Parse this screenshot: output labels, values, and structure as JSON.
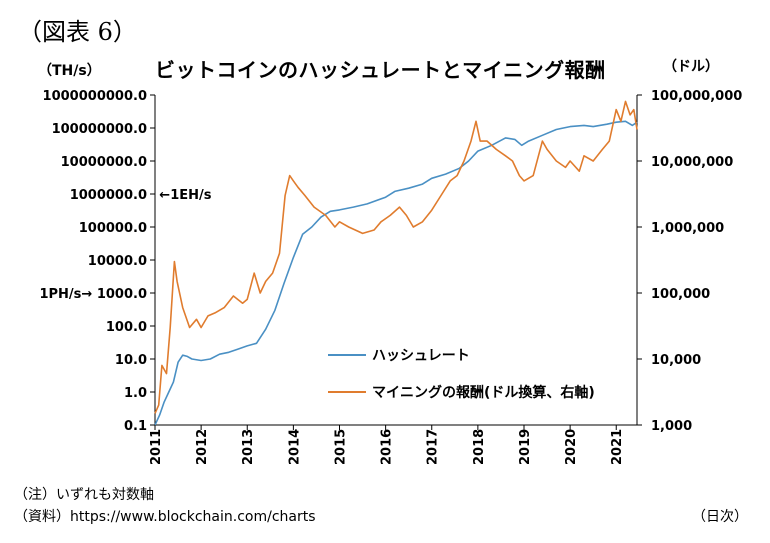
{
  "figure_label": "（図表 6）",
  "note": "（注）いずれも対数軸",
  "source": "（資料）https://www.blockchain.com/charts",
  "frequency": "（日次）",
  "colors": {
    "hashrate": "#4a90c4",
    "reward": "#e07c2e",
    "axis": "#000000",
    "grid": "#d9d9d9"
  },
  "chart_data": {
    "type": "line",
    "title": "ビットコインのハッシュレートとマイニング報酬",
    "ylabel": "（TH/s）",
    "y2label": "（ドル）",
    "yscale": "log",
    "ylim": [
      0.1,
      1000000000
    ],
    "y2lim": [
      1000,
      100000000
    ],
    "xlim": [
      2011.0,
      2021.45
    ],
    "x_ticks": [
      "2011",
      "2012",
      "2013",
      "2014",
      "2015",
      "2016",
      "2017",
      "2018",
      "2019",
      "2020",
      "2021"
    ],
    "y_ticks": [
      "0.1",
      "1.0",
      "10.0",
      "100.0",
      "1000.0",
      "10000.0",
      "100000.0",
      "1000000.0",
      "10000000.0",
      "100000000.0",
      "1000000000.0"
    ],
    "y_ticks_left_special": {
      "1000.0": "1PH/s→ 1000.0"
    },
    "y2_ticks": [
      "1,000",
      "10,000",
      "100,000",
      "1,000,000",
      "10,000,000",
      "100,000,000"
    ],
    "annotations": [
      {
        "text": "←1EH/s",
        "x": 2011.05,
        "y": 1000000
      }
    ],
    "grid": false,
    "legend_position": "bottom-right",
    "series": [
      {
        "name": "ハッシュレート",
        "axis": "left",
        "x": [
          2011.0,
          2011.1,
          2011.2,
          2011.3,
          2011.4,
          2011.5,
          2011.6,
          2011.7,
          2011.8,
          2012.0,
          2012.2,
          2012.4,
          2012.6,
          2012.8,
          2013.0,
          2013.2,
          2013.4,
          2013.6,
          2013.8,
          2014.0,
          2014.2,
          2014.4,
          2014.6,
          2014.8,
          2015.0,
          2015.3,
          2015.6,
          2016.0,
          2016.2,
          2016.5,
          2016.8,
          2017.0,
          2017.3,
          2017.6,
          2017.8,
          2018.0,
          2018.3,
          2018.6,
          2018.8,
          2018.95,
          2019.1,
          2019.4,
          2019.7,
          2020.0,
          2020.3,
          2020.5,
          2020.8,
          2021.0,
          2021.2,
          2021.35,
          2021.45
        ],
        "y": [
          0.1,
          0.2,
          0.5,
          1,
          2,
          8,
          13,
          12,
          10,
          9,
          10,
          14,
          16,
          20,
          25,
          30,
          80,
          300,
          2000,
          12000,
          60000,
          100000,
          200000,
          300000,
          330000,
          400000,
          500000,
          800000,
          1200000,
          1500000,
          2000000,
          3000000,
          4000000,
          6000000,
          10000000,
          20000000,
          30000000,
          50000000,
          45000000,
          30000000,
          40000000,
          60000000,
          90000000,
          110000000,
          120000000,
          110000000,
          130000000,
          150000000,
          160000000,
          120000000,
          150000000
        ]
      },
      {
        "name": "マイニングの報酬(ドル換算、右軸)",
        "axis": "right",
        "x": [
          2011.0,
          2011.08,
          2011.15,
          2011.25,
          2011.33,
          2011.42,
          2011.48,
          2011.6,
          2011.75,
          2011.9,
          2012.0,
          2012.15,
          2012.3,
          2012.5,
          2012.7,
          2012.9,
          2013.0,
          2013.15,
          2013.28,
          2013.4,
          2013.55,
          2013.7,
          2013.82,
          2013.92,
          2014.0,
          2014.1,
          2014.25,
          2014.45,
          2014.7,
          2014.9,
          2015.0,
          2015.2,
          2015.5,
          2015.75,
          2015.9,
          2016.1,
          2016.3,
          2016.45,
          2016.6,
          2016.8,
          2017.0,
          2017.2,
          2017.4,
          2017.55,
          2017.7,
          2017.85,
          2017.96,
          2018.05,
          2018.2,
          2018.4,
          2018.6,
          2018.75,
          2018.9,
          2019.0,
          2019.2,
          2019.4,
          2019.5,
          2019.7,
          2019.9,
          2020.0,
          2020.2,
          2020.3,
          2020.5,
          2020.7,
          2020.85,
          2021.0,
          2021.1,
          2021.2,
          2021.3,
          2021.38,
          2021.45
        ],
        "y": [
          1500,
          2000,
          8000,
          6000,
          30000,
          300000,
          150000,
          60000,
          30000,
          40000,
          30000,
          45000,
          50000,
          60000,
          90000,
          70000,
          80000,
          200000,
          100000,
          150000,
          200000,
          400000,
          3000000,
          6000000,
          5000000,
          4000000,
          3000000,
          2000000,
          1500000,
          1000000,
          1200000,
          1000000,
          800000,
          900000,
          1200000,
          1500000,
          2000000,
          1500000,
          1000000,
          1200000,
          1800000,
          3000000,
          5000000,
          6000000,
          10000000,
          20000000,
          40000000,
          20000000,
          20000000,
          15000000,
          12000000,
          10000000,
          6000000,
          5000000,
          6000000,
          20000000,
          15000000,
          10000000,
          8000000,
          10000000,
          7000000,
          12000000,
          10000000,
          15000000,
          20000000,
          60000000,
          40000000,
          80000000,
          50000000,
          60000000,
          30000000
        ]
      }
    ]
  }
}
